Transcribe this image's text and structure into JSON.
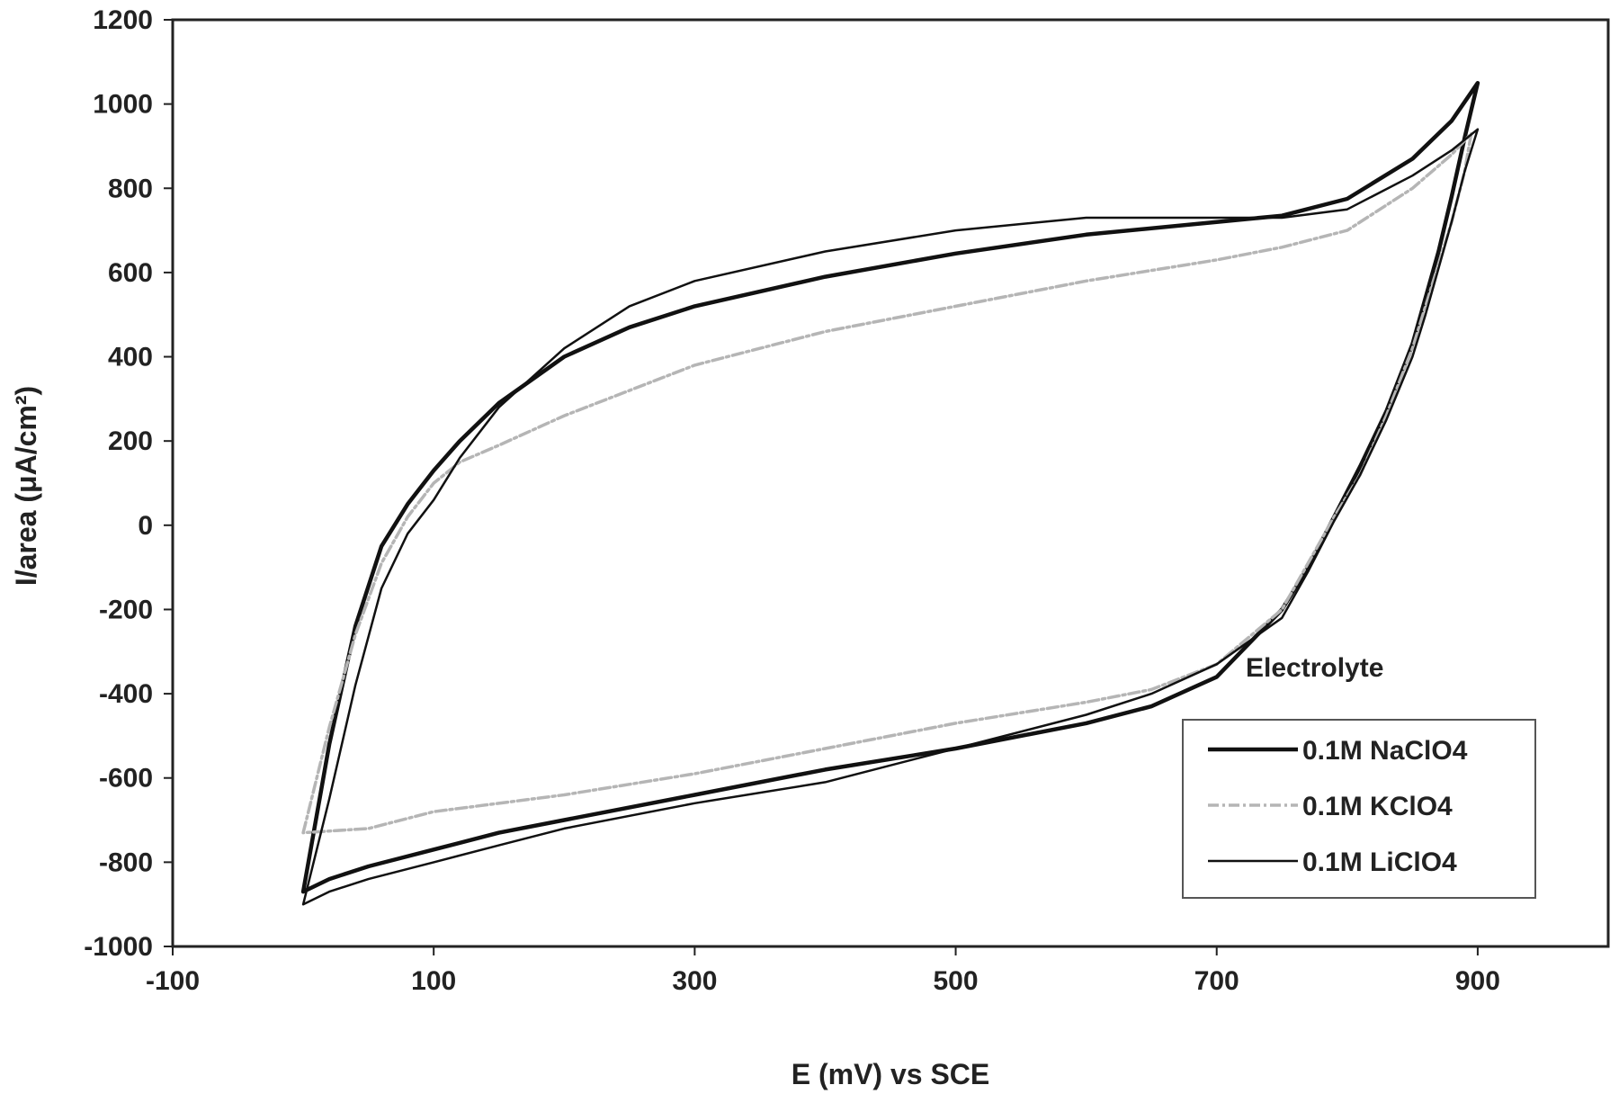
{
  "chart_data": {
    "type": "line",
    "title": "",
    "xlabel": "E (mV) vs SCE",
    "ylabel": "I/area (μA/cm²)",
    "xlim": [
      -100,
      1000
    ],
    "ylim": [
      -1000,
      1200
    ],
    "x_ticks": [
      -100,
      100,
      300,
      500,
      700,
      900
    ],
    "y_ticks": [
      -1000,
      -800,
      -600,
      -400,
      -200,
      0,
      200,
      400,
      600,
      800,
      1000,
      1200
    ],
    "grid": false,
    "legend_title": "Electrolyte",
    "legend_position": "bottom-right",
    "series": [
      {
        "name": "0.1M NaClO4",
        "color": "#111111",
        "style": "thick",
        "x": [
          0,
          20,
          40,
          60,
          80,
          100,
          120,
          150,
          200,
          250,
          300,
          400,
          500,
          600,
          700,
          750,
          800,
          850,
          880,
          900,
          890,
          880,
          870,
          860,
          850,
          830,
          810,
          790,
          770,
          750,
          700,
          650,
          600,
          500,
          400,
          300,
          200,
          150,
          100,
          50,
          20,
          0
        ],
        "y": [
          -870,
          -520,
          -240,
          -50,
          50,
          130,
          200,
          290,
          400,
          470,
          520,
          590,
          645,
          690,
          720,
          735,
          775,
          870,
          960,
          1050,
          920,
          780,
          650,
          540,
          430,
          270,
          140,
          20,
          -100,
          -200,
          -360,
          -430,
          -470,
          -530,
          -580,
          -640,
          -700,
          -730,
          -770,
          -810,
          -840,
          -870
        ]
      },
      {
        "name": "0.1M KClO4",
        "color": "#b5b5b5",
        "style": "dashed",
        "x": [
          0,
          20,
          40,
          60,
          80,
          100,
          120,
          150,
          200,
          300,
          400,
          500,
          600,
          700,
          750,
          800,
          850,
          880,
          895,
          890,
          880,
          870,
          860,
          850,
          830,
          810,
          790,
          770,
          750,
          700,
          650,
          600,
          500,
          400,
          300,
          200,
          100,
          50,
          0
        ],
        "y": [
          -730,
          -480,
          -260,
          -90,
          20,
          100,
          150,
          190,
          260,
          380,
          460,
          520,
          580,
          630,
          660,
          700,
          800,
          880,
          930,
          840,
          720,
          620,
          520,
          420,
          260,
          120,
          20,
          -90,
          -200,
          -330,
          -390,
          -420,
          -470,
          -530,
          -590,
          -640,
          -680,
          -720,
          -730
        ]
      },
      {
        "name": "0.1M LiClO4",
        "color": "#111111",
        "style": "thin",
        "x": [
          0,
          20,
          40,
          60,
          80,
          100,
          120,
          150,
          200,
          250,
          300,
          400,
          500,
          600,
          700,
          750,
          800,
          850,
          880,
          900,
          890,
          880,
          870,
          860,
          850,
          830,
          810,
          790,
          770,
          750,
          700,
          650,
          600,
          500,
          400,
          300,
          200,
          150,
          100,
          50,
          20,
          0
        ],
        "y": [
          -900,
          -650,
          -380,
          -150,
          -20,
          60,
          160,
          280,
          420,
          520,
          580,
          650,
          700,
          730,
          730,
          730,
          750,
          830,
          890,
          940,
          840,
          720,
          610,
          500,
          400,
          250,
          120,
          10,
          -110,
          -220,
          -330,
          -400,
          -450,
          -530,
          -610,
          -660,
          -720,
          -760,
          -800,
          -840,
          -870,
          -900
        ]
      }
    ]
  }
}
